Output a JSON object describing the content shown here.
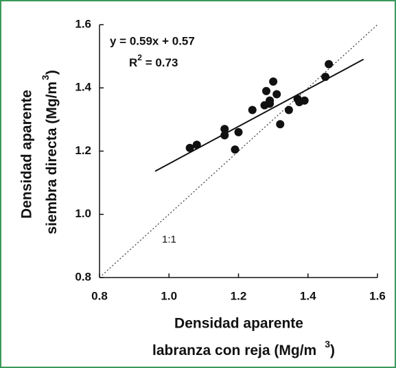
{
  "chart_data": {
    "type": "scatter",
    "x_label": {
      "line1": "Densidad aparente",
      "line2": "labranza con reja (Mg/m",
      "sup": "3",
      "end": ")"
    },
    "y_label": {
      "line1": "Densidad aparente",
      "line2": "siembra directa (Mg/m",
      "sup": "3",
      "end": ")"
    },
    "equation": "y = 0.59x + 0.57",
    "r2": {
      "base": "R",
      "sup": "2",
      "rest": " = 0.73"
    },
    "identity_label": "1:1",
    "fit": {
      "slope": 0.59,
      "intercept": 0.57,
      "xrange": [
        0.96,
        1.56
      ]
    },
    "identity": [
      0.8,
      1.6
    ],
    "color": "#111111",
    "x": [
      1.06,
      1.08,
      1.16,
      1.16,
      1.2,
      1.19,
      1.24,
      1.275,
      1.28,
      1.29,
      1.29,
      1.3,
      1.31,
      1.32,
      1.345,
      1.37,
      1.375,
      1.39,
      1.45,
      1.46
    ],
    "values": [
      1.21,
      1.22,
      1.27,
      1.25,
      1.26,
      1.205,
      1.33,
      1.345,
      1.39,
      1.36,
      1.35,
      1.42,
      1.38,
      1.285,
      1.33,
      1.365,
      1.355,
      1.36,
      1.435,
      1.475
    ],
    "xlim": [
      0.8,
      1.6
    ],
    "ylim": [
      0.8,
      1.6
    ],
    "xticks": [
      0.8,
      {
        "value": 1,
        "label": "1.0"
      },
      1.2,
      1.4,
      1.6
    ],
    "yticks": [
      0.8,
      {
        "value": 1,
        "label": "1.0"
      },
      1.2,
      1.4,
      1.6
    ]
  }
}
